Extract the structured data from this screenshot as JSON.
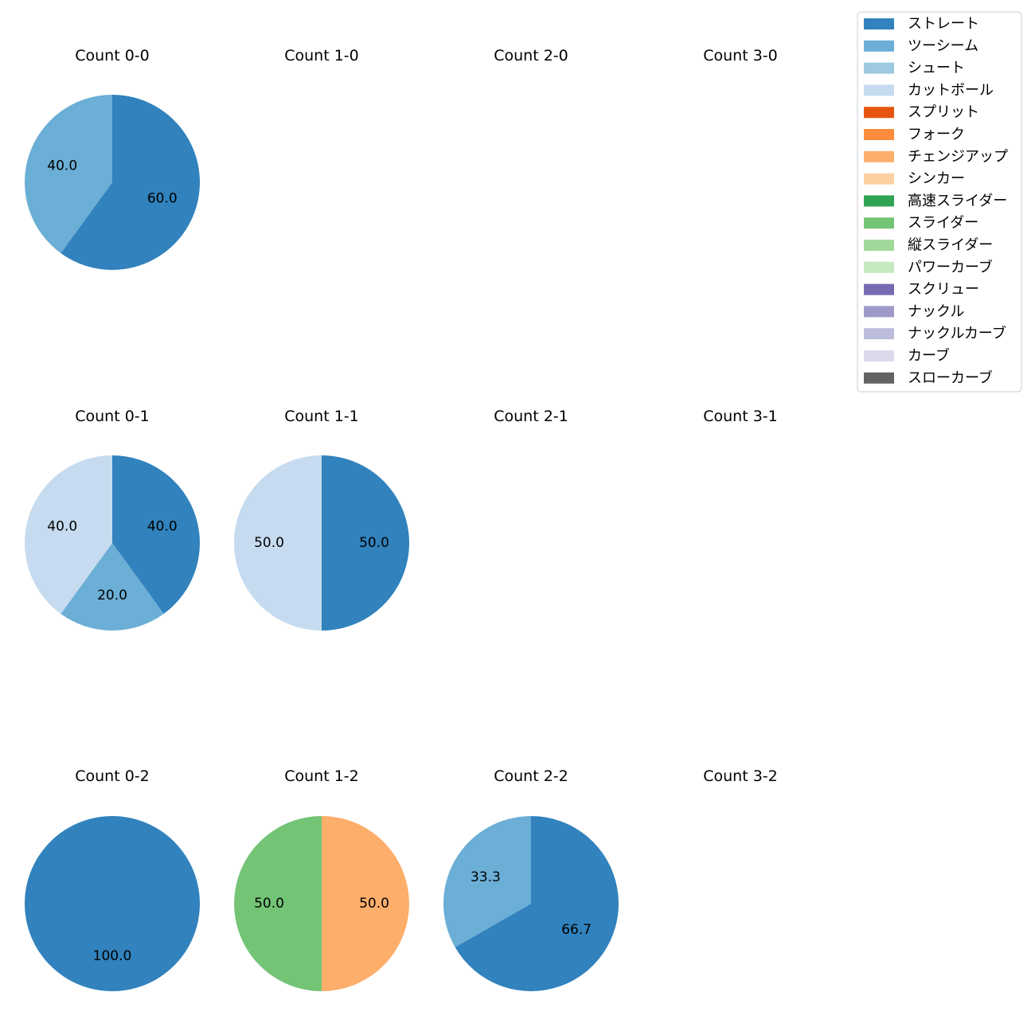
{
  "chart_data": {
    "type": "pie",
    "rows": 3,
    "cols": 4,
    "legend": {
      "placement": "top-right",
      "entries": [
        {
          "label": "ストレート",
          "color": "#3182bd"
        },
        {
          "label": "ツーシーム",
          "color": "#6baed6"
        },
        {
          "label": "シュート",
          "color": "#9ecae1"
        },
        {
          "label": "カットボール",
          "color": "#c6dbef"
        },
        {
          "label": "スプリット",
          "color": "#e6550d"
        },
        {
          "label": "フォーク",
          "color": "#fd8d3c"
        },
        {
          "label": "チェンジアップ",
          "color": "#fdae6b"
        },
        {
          "label": "シンカー",
          "color": "#fdd0a2"
        },
        {
          "label": "高速スライダー",
          "color": "#31a354"
        },
        {
          "label": "スライダー",
          "color": "#74c476"
        },
        {
          "label": "縦スライダー",
          "color": "#a1d99b"
        },
        {
          "label": "パワーカーブ",
          "color": "#c7e9c0"
        },
        {
          "label": "スクリュー",
          "color": "#756bb1"
        },
        {
          "label": "ナックル",
          "color": "#9e9ac8"
        },
        {
          "label": "ナックルカーブ",
          "color": "#bcbddc"
        },
        {
          "label": "カーブ",
          "color": "#dadaeb"
        },
        {
          "label": "スローカーブ",
          "color": "#636363"
        }
      ]
    },
    "panels": [
      {
        "title": "Count 0-0",
        "row": 0,
        "col": 0,
        "slices": [
          {
            "pitch": "ストレート",
            "value": 60.0,
            "label": "60.0"
          },
          {
            "pitch": "ツーシーム",
            "value": 40.0,
            "label": "40.0"
          }
        ]
      },
      {
        "title": "Count 1-0",
        "row": 0,
        "col": 1,
        "slices": []
      },
      {
        "title": "Count 2-0",
        "row": 0,
        "col": 2,
        "slices": []
      },
      {
        "title": "Count 3-0",
        "row": 0,
        "col": 3,
        "slices": []
      },
      {
        "title": "Count 0-1",
        "row": 1,
        "col": 0,
        "slices": [
          {
            "pitch": "ストレート",
            "value": 40.0,
            "label": "40.0"
          },
          {
            "pitch": "ツーシーム",
            "value": 20.0,
            "label": "20.0"
          },
          {
            "pitch": "カットボール",
            "value": 40.0,
            "label": "40.0"
          }
        ]
      },
      {
        "title": "Count 1-1",
        "row": 1,
        "col": 1,
        "slices": [
          {
            "pitch": "ストレート",
            "value": 50.0,
            "label": "50.0"
          },
          {
            "pitch": "カットボール",
            "value": 50.0,
            "label": "50.0"
          }
        ]
      },
      {
        "title": "Count 2-1",
        "row": 1,
        "col": 2,
        "slices": []
      },
      {
        "title": "Count 3-1",
        "row": 1,
        "col": 3,
        "slices": []
      },
      {
        "title": "Count 0-2",
        "row": 2,
        "col": 0,
        "slices": [
          {
            "pitch": "ストレート",
            "value": 100.0,
            "label": "100.0"
          }
        ]
      },
      {
        "title": "Count 1-2",
        "row": 2,
        "col": 1,
        "slices": [
          {
            "pitch": "チェンジアップ",
            "value": 50.0,
            "label": "50.0"
          },
          {
            "pitch": "スライダー",
            "value": 50.0,
            "label": "50.0"
          }
        ]
      },
      {
        "title": "Count 2-2",
        "row": 2,
        "col": 2,
        "slices": [
          {
            "pitch": "ストレート",
            "value": 66.7,
            "label": "66.7"
          },
          {
            "pitch": "ツーシーム",
            "value": 33.3,
            "label": "33.3"
          }
        ]
      },
      {
        "title": "Count 3-2",
        "row": 2,
        "col": 3,
        "slices": []
      }
    ]
  }
}
